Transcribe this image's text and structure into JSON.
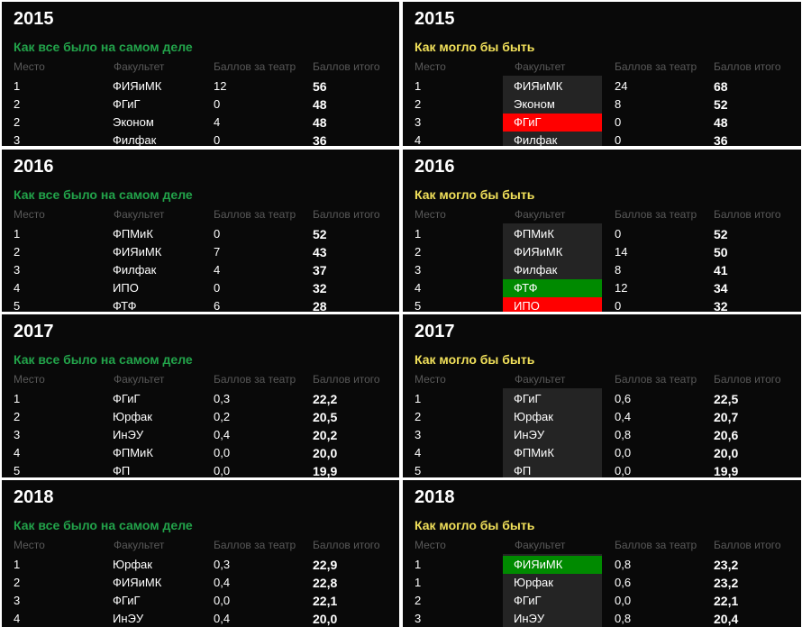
{
  "headers": {
    "place": "Место",
    "faculty": "Факультет",
    "theater": "Баллов за театр",
    "total": "Баллов итого"
  },
  "labels": {
    "real": "Как все было на самом деле",
    "alt": "Как могло бы быть"
  },
  "colors": {
    "panel_bg": "#090909",
    "real_title": "#22a34a",
    "alt_title": "#f1e05a",
    "loss_highlight": "#ff0000",
    "gain_highlight": "#008a00"
  },
  "blocks": [
    {
      "year": "2015",
      "real": [
        {
          "place": "1",
          "faculty": "ФИЯиМК",
          "theater": "12",
          "total": "56"
        },
        {
          "place": "2",
          "faculty": "ФГиГ",
          "theater": "0",
          "total": "48"
        },
        {
          "place": "2",
          "faculty": "Эконом",
          "theater": "4",
          "total": "48"
        },
        {
          "place": "3",
          "faculty": "Филфак",
          "theater": "0",
          "total": "36"
        }
      ],
      "alt": [
        {
          "place": "1",
          "faculty": "ФИЯиМК",
          "theater": "24",
          "total": "68",
          "highlight": ""
        },
        {
          "place": "2",
          "faculty": "Эконом",
          "theater": "8",
          "total": "52",
          "highlight": ""
        },
        {
          "place": "3",
          "faculty": "ФГиГ",
          "theater": "0",
          "total": "48",
          "highlight": "red"
        },
        {
          "place": "4",
          "faculty": "Филфак",
          "theater": "0",
          "total": "36",
          "highlight": ""
        }
      ]
    },
    {
      "year": "2016",
      "real": [
        {
          "place": "1",
          "faculty": "ФПМиК",
          "theater": "0",
          "total": "52"
        },
        {
          "place": "2",
          "faculty": "ФИЯиМК",
          "theater": "7",
          "total": "43"
        },
        {
          "place": "3",
          "faculty": "Филфак",
          "theater": "4",
          "total": "37"
        },
        {
          "place": "4",
          "faculty": "ИПО",
          "theater": "0",
          "total": "32"
        },
        {
          "place": "5",
          "faculty": "ФТФ",
          "theater": "6",
          "total": "28"
        }
      ],
      "alt": [
        {
          "place": "1",
          "faculty": "ФПМиК",
          "theater": "0",
          "total": "52",
          "highlight": ""
        },
        {
          "place": "2",
          "faculty": "ФИЯиМК",
          "theater": "14",
          "total": "50",
          "highlight": ""
        },
        {
          "place": "3",
          "faculty": "Филфак",
          "theater": "8",
          "total": "41",
          "highlight": ""
        },
        {
          "place": "4",
          "faculty": "ФТФ",
          "theater": "12",
          "total": "34",
          "highlight": "green"
        },
        {
          "place": "5",
          "faculty": "ИПО",
          "theater": "0",
          "total": "32",
          "highlight": "red"
        }
      ]
    },
    {
      "year": "2017",
      "real": [
        {
          "place": "1",
          "faculty": "ФГиГ",
          "theater": "0,3",
          "total": "22,2"
        },
        {
          "place": "2",
          "faculty": "Юрфак",
          "theater": "0,2",
          "total": "20,5"
        },
        {
          "place": "3",
          "faculty": "ИнЭУ",
          "theater": "0,4",
          "total": "20,2"
        },
        {
          "place": "4",
          "faculty": "ФПМиК",
          "theater": "0,0",
          "total": "20,0"
        },
        {
          "place": "5",
          "faculty": "ФП",
          "theater": "0,0",
          "total": "19,9"
        }
      ],
      "alt": [
        {
          "place": "1",
          "faculty": "ФГиГ",
          "theater": "0,6",
          "total": "22,5",
          "highlight": ""
        },
        {
          "place": "2",
          "faculty": "Юрфак",
          "theater": "0,4",
          "total": "20,7",
          "highlight": ""
        },
        {
          "place": "3",
          "faculty": "ИнЭУ",
          "theater": "0,8",
          "total": "20,6",
          "highlight": ""
        },
        {
          "place": "4",
          "faculty": "ФПМиК",
          "theater": "0,0",
          "total": "20,0",
          "highlight": ""
        },
        {
          "place": "5",
          "faculty": "ФП",
          "theater": "0,0",
          "total": "19,9",
          "highlight": ""
        }
      ]
    },
    {
      "year": "2018",
      "real": [
        {
          "place": "1",
          "faculty": "Юрфак",
          "theater": "0,3",
          "total": "22,9"
        },
        {
          "place": "2",
          "faculty": "ФИЯиМК",
          "theater": "0,4",
          "total": "22,8"
        },
        {
          "place": "3",
          "faculty": "ФГиГ",
          "theater": "0,0",
          "total": "22,1"
        },
        {
          "place": "4",
          "faculty": "ИнЭУ",
          "theater": "0,4",
          "total": "20,0"
        }
      ],
      "alt": [
        {
          "place": "1",
          "faculty": "ФИЯиМК",
          "theater": "0,8",
          "total": "23,2",
          "highlight": "green"
        },
        {
          "place": "1",
          "faculty": "Юрфак",
          "theater": "0,6",
          "total": "23,2",
          "highlight": ""
        },
        {
          "place": "2",
          "faculty": "ФГиГ",
          "theater": "0,0",
          "total": "22,1",
          "highlight": ""
        },
        {
          "place": "3",
          "faculty": "ИнЭУ",
          "theater": "0,8",
          "total": "20,4",
          "highlight": ""
        }
      ]
    }
  ]
}
